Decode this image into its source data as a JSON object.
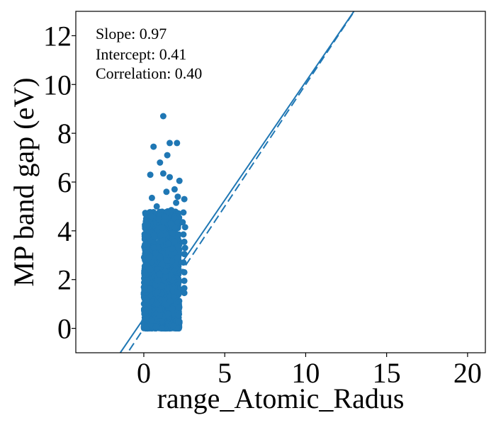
{
  "chart_data": {
    "type": "scatter",
    "xlabel": "range_Atomic_Radus",
    "ylabel": "MP band gap (eV)",
    "xlim": [
      -4.2,
      21.1
    ],
    "ylim": [
      -1.0,
      13.0
    ],
    "xticks": [
      0,
      5,
      10,
      15,
      20
    ],
    "yticks": [
      0,
      2,
      4,
      6,
      8,
      10,
      12
    ],
    "grid": false,
    "annotations": [
      "Slope: 0.97",
      "Intercept: 0.41",
      "Correlation: 0.40"
    ],
    "fit_line": {
      "slope": 0.97,
      "intercept": 0.41,
      "style": "solid"
    },
    "identity_line": {
      "slope": 1.0,
      "intercept": 0.0,
      "style": "dashed"
    },
    "color": "#1f77b4",
    "points_outliers": [
      [
        1.2,
        8.7
      ],
      [
        0.6,
        7.45
      ],
      [
        1.6,
        7.6
      ],
      [
        2.05,
        7.6
      ],
      [
        1.45,
        7.1
      ],
      [
        1.0,
        6.8
      ],
      [
        0.4,
        6.3
      ],
      [
        1.2,
        6.35
      ],
      [
        1.6,
        6.2
      ],
      [
        2.2,
        6.05
      ],
      [
        1.9,
        5.7
      ],
      [
        1.4,
        5.6
      ],
      [
        0.5,
        5.35
      ],
      [
        2.1,
        5.4
      ],
      [
        2.5,
        5.3
      ],
      [
        2.0,
        5.15
      ],
      [
        0.8,
        5.0
      ],
      [
        1.7,
        4.85
      ],
      [
        2.45,
        4.75
      ],
      [
        0.45,
        4.6
      ],
      [
        2.4,
        4.35
      ],
      [
        2.55,
        4.15
      ],
      [
        2.45,
        3.85
      ],
      [
        2.5,
        3.55
      ],
      [
        2.55,
        3.3
      ],
      [
        2.5,
        3.05
      ],
      [
        2.45,
        2.7
      ],
      [
        2.5,
        2.3
      ],
      [
        2.5,
        1.95
      ],
      [
        2.5,
        1.65
      ],
      [
        2.5,
        1.45
      ],
      [
        0.2,
        3.1
      ],
      [
        0.3,
        2.9
      ]
    ],
    "cluster": {
      "x_range": [
        0.0,
        2.2
      ],
      "y_range": [
        0.0,
        4.8
      ],
      "count": 1500
    }
  }
}
